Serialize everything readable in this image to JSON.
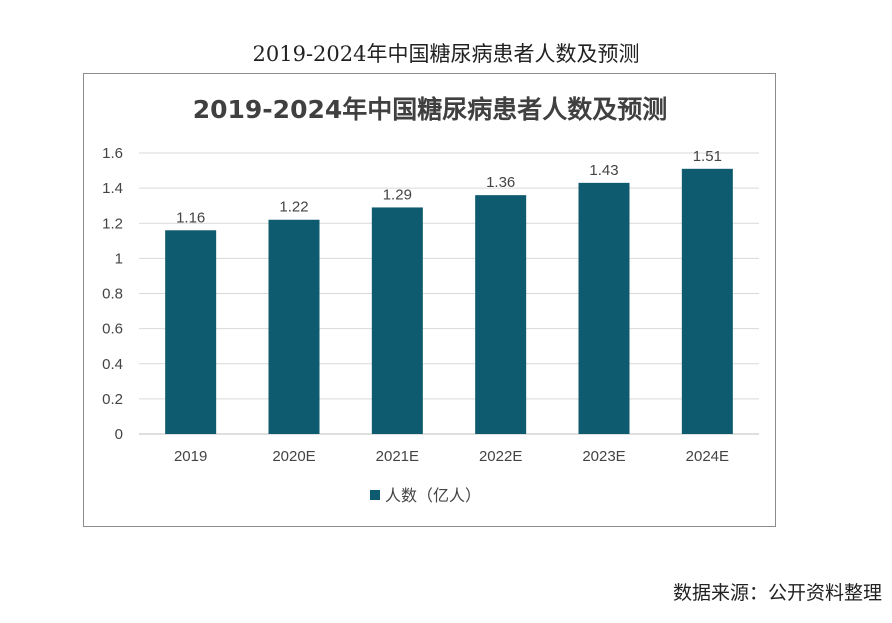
{
  "caption": "2019-2024年中国糖尿病患者人数及预测",
  "source": "数据来源：公开资料整理",
  "colors": {
    "bar": "#0e5a6e",
    "grid": "#d9d9d9",
    "text": "#444444"
  },
  "chart_data": {
    "type": "bar",
    "title": "2019-2024年中国糖尿病患者人数及预测",
    "categories": [
      "2019",
      "2020E",
      "2021E",
      "2022E",
      "2023E",
      "2024E"
    ],
    "series": [
      {
        "name": "人数（亿人）",
        "values": [
          1.16,
          1.22,
          1.29,
          1.36,
          1.43,
          1.51
        ]
      }
    ],
    "data_labels": [
      "1.16",
      "1.22",
      "1.29",
      "1.36",
      "1.43",
      "1.51"
    ],
    "y_ticks": [
      "0",
      "0.2",
      "0.4",
      "0.6",
      "0.8",
      "1",
      "1.2",
      "1.4",
      "1.6"
    ],
    "ylim": [
      0,
      1.6
    ],
    "grid": true,
    "legend": "bottom"
  }
}
